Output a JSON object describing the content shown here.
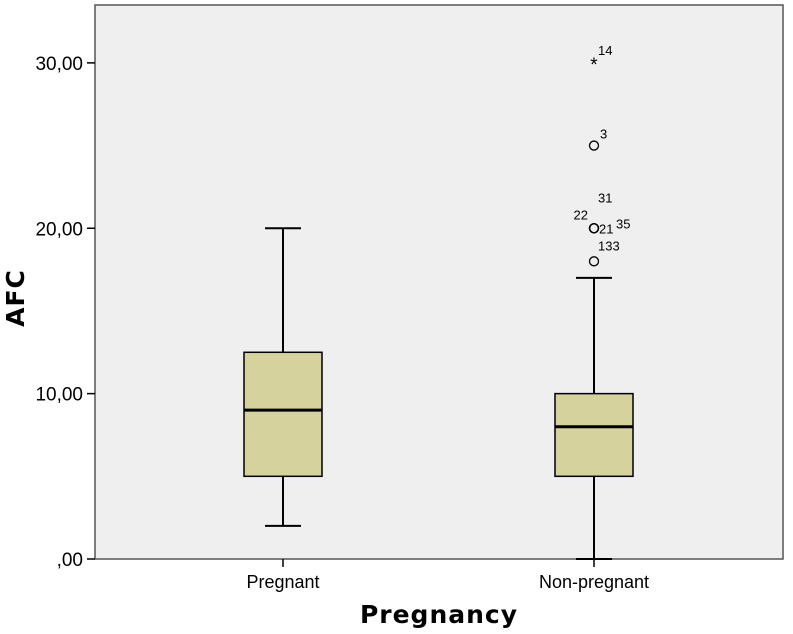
{
  "chart_data": {
    "type": "boxplot",
    "xlabel": "Pregnancy",
    "ylabel": "AFC",
    "ylim": [
      0,
      33.5
    ],
    "yticks": [
      {
        "value": 0,
        "label": ",00"
      },
      {
        "value": 10,
        "label": "10,00"
      },
      {
        "value": 20,
        "label": "20,00"
      },
      {
        "value": 30,
        "label": "30,00"
      }
    ],
    "grid": false,
    "plot_background": "#efefef",
    "box_fill": "#d6d29e",
    "categories": [
      "Pregnant",
      "Non-pregnant"
    ],
    "boxes": [
      {
        "category": "Pregnant",
        "whisker_low": 2,
        "q1": 5,
        "median": 9,
        "q3": 12.5,
        "whisker_high": 20,
        "outliers": []
      },
      {
        "category": "Non-pregnant",
        "whisker_low": 0,
        "q1": 5,
        "median": 8,
        "q3": 10,
        "whisker_high": 17,
        "outliers": [
          {
            "value": 30,
            "label": "14",
            "marker": "star"
          },
          {
            "value": 25,
            "label": "3",
            "marker": "circle"
          },
          {
            "value": 20,
            "label": "31",
            "marker": "circle"
          },
          {
            "value": 20,
            "label": "22",
            "marker": "circle"
          },
          {
            "value": 20,
            "label": "21",
            "marker": "circle"
          },
          {
            "value": 20,
            "label": "35",
            "marker": "circle"
          },
          {
            "value": 18,
            "label": "133",
            "marker": "circle"
          }
        ]
      }
    ]
  }
}
